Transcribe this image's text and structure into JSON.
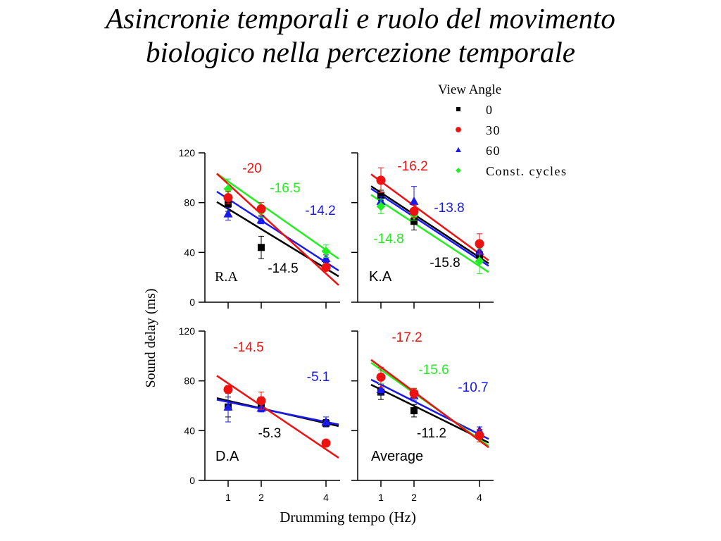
{
  "title": {
    "line1": "Asincronie temporali e ruolo del movimento",
    "line2": "biologico nella percezione temporale"
  },
  "colors": {
    "0": "#000000",
    "30": "#ee1111",
    "60": "#1a1aee",
    "const": "#22ee22"
  },
  "chart_data": {
    "type": "scatter",
    "xlabel": "Drumming tempo (Hz)",
    "ylabel": "Sound delay (ms)",
    "x_ticks": [
      "1",
      "2",
      "4"
    ],
    "x_values": [
      1,
      2,
      4
    ],
    "ylim": [
      0,
      120
    ],
    "y_ticks": [
      "0",
      "40",
      "80",
      "120"
    ],
    "legend": {
      "title": "View Angle",
      "placement": "top-right",
      "entries": [
        {
          "key": "0",
          "label": "0",
          "marker": "square"
        },
        {
          "key": "30",
          "label": "30",
          "marker": "circle"
        },
        {
          "key": "60",
          "label": "60",
          "marker": "triangle"
        },
        {
          "key": "const",
          "label": "Const. cycles",
          "marker": "diamond"
        }
      ]
    },
    "panels": [
      {
        "name": "R.A",
        "label": "R.A",
        "series": [
          {
            "key": "0",
            "values": [
              79,
              44,
              null
            ],
            "errors": [
              6,
              9,
              0
            ],
            "fit": [
              75,
              27
            ]
          },
          {
            "key": "30",
            "values": [
              84,
              75,
              28
            ],
            "errors": [
              5,
              5,
              3
            ],
            "fit": [
              95,
              23
            ]
          },
          {
            "key": "60",
            "values": [
              71,
              66,
              35
            ],
            "errors": [
              5,
              3,
              3
            ],
            "fit": [
              83,
              32
            ]
          },
          {
            "key": "const",
            "values": [
              91,
              73,
              41
            ],
            "errors": [
              8,
              5,
              5
            ],
            "fit": [
              97,
              42
            ]
          }
        ],
        "slopes": [
          {
            "key": "30",
            "text": "-20"
          },
          {
            "key": "const",
            "text": "-16.5"
          },
          {
            "key": "60",
            "text": "-14.2"
          },
          {
            "key": "0",
            "text": "-14.5"
          }
        ]
      },
      {
        "name": "K.A",
        "label": "K.A",
        "series": [
          {
            "key": "0",
            "values": [
              86,
              65,
              38
            ],
            "errors": [
              4,
              7,
              3
            ],
            "fit": [
              88,
              36
            ]
          },
          {
            "key": "30",
            "values": [
              98,
              73,
              47
            ],
            "errors": [
              10,
              5,
              8
            ],
            "fit": [
              97,
              39
            ]
          },
          {
            "key": "60",
            "values": [
              81,
              81,
              41
            ],
            "errors": [
              4,
              12,
              3
            ],
            "fit": [
              86,
              34
            ]
          },
          {
            "key": "const",
            "values": [
              77,
              70,
              33
            ],
            "errors": [
              6,
              4,
              10
            ],
            "fit": [
              81,
              29
            ]
          }
        ],
        "slopes": [
          {
            "key": "30",
            "text": "-16.2"
          },
          {
            "key": "60",
            "text": "-13.8"
          },
          {
            "key": "const",
            "text": "-14.8"
          },
          {
            "key": "0",
            "text": "-15.8"
          }
        ]
      },
      {
        "name": "D.A",
        "label": "D.A",
        "series": [
          {
            "key": "0",
            "values": [
              59,
              62,
              46
            ],
            "errors": [
              8,
              5,
              3
            ],
            "fit": [
              64,
              46
            ]
          },
          {
            "key": "30",
            "values": [
              73,
              64,
              30
            ],
            "errors": [
              3,
              7,
              2
            ],
            "fit": [
              78,
              25
            ]
          },
          {
            "key": "60",
            "values": [
              59,
              58,
              47
            ],
            "errors": [
              12,
              3,
              4
            ],
            "fit": [
              63,
              47
            ]
          },
          {
            "key": "const",
            "values": [
              null,
              null,
              null
            ],
            "errors": [
              0,
              0,
              0
            ],
            "fit": null
          }
        ],
        "slopes": [
          {
            "key": "30",
            "text": "-14.5"
          },
          {
            "key": "60",
            "text": "-5.1"
          },
          {
            "key": "0",
            "text": "-5.3"
          }
        ]
      },
      {
        "name": "Average",
        "label": "Average",
        "series": [
          {
            "key": "0",
            "values": [
              71,
              56,
              36
            ],
            "errors": [
              6,
              5,
              3
            ],
            "fit": [
              73,
              34
            ]
          },
          {
            "key": "30",
            "values": [
              83,
              70,
              36
            ],
            "errors": [
              8,
              4,
              5
            ],
            "fit": [
              91,
              32
            ]
          },
          {
            "key": "60",
            "values": [
              73,
              68,
              40
            ],
            "errors": [
              4,
              4,
              3
            ],
            "fit": [
              77,
              37
            ]
          },
          {
            "key": "const",
            "values": [
              83,
              70,
              35
            ],
            "errors": [
              5,
              4,
              4
            ],
            "fit": [
              89,
              33
            ]
          }
        ],
        "slopes": [
          {
            "key": "30",
            "text": "-17.2"
          },
          {
            "key": "const",
            "text": "-15.6"
          },
          {
            "key": "60",
            "text": "-10.7"
          },
          {
            "key": "0",
            "text": "-11.2"
          }
        ]
      }
    ]
  }
}
